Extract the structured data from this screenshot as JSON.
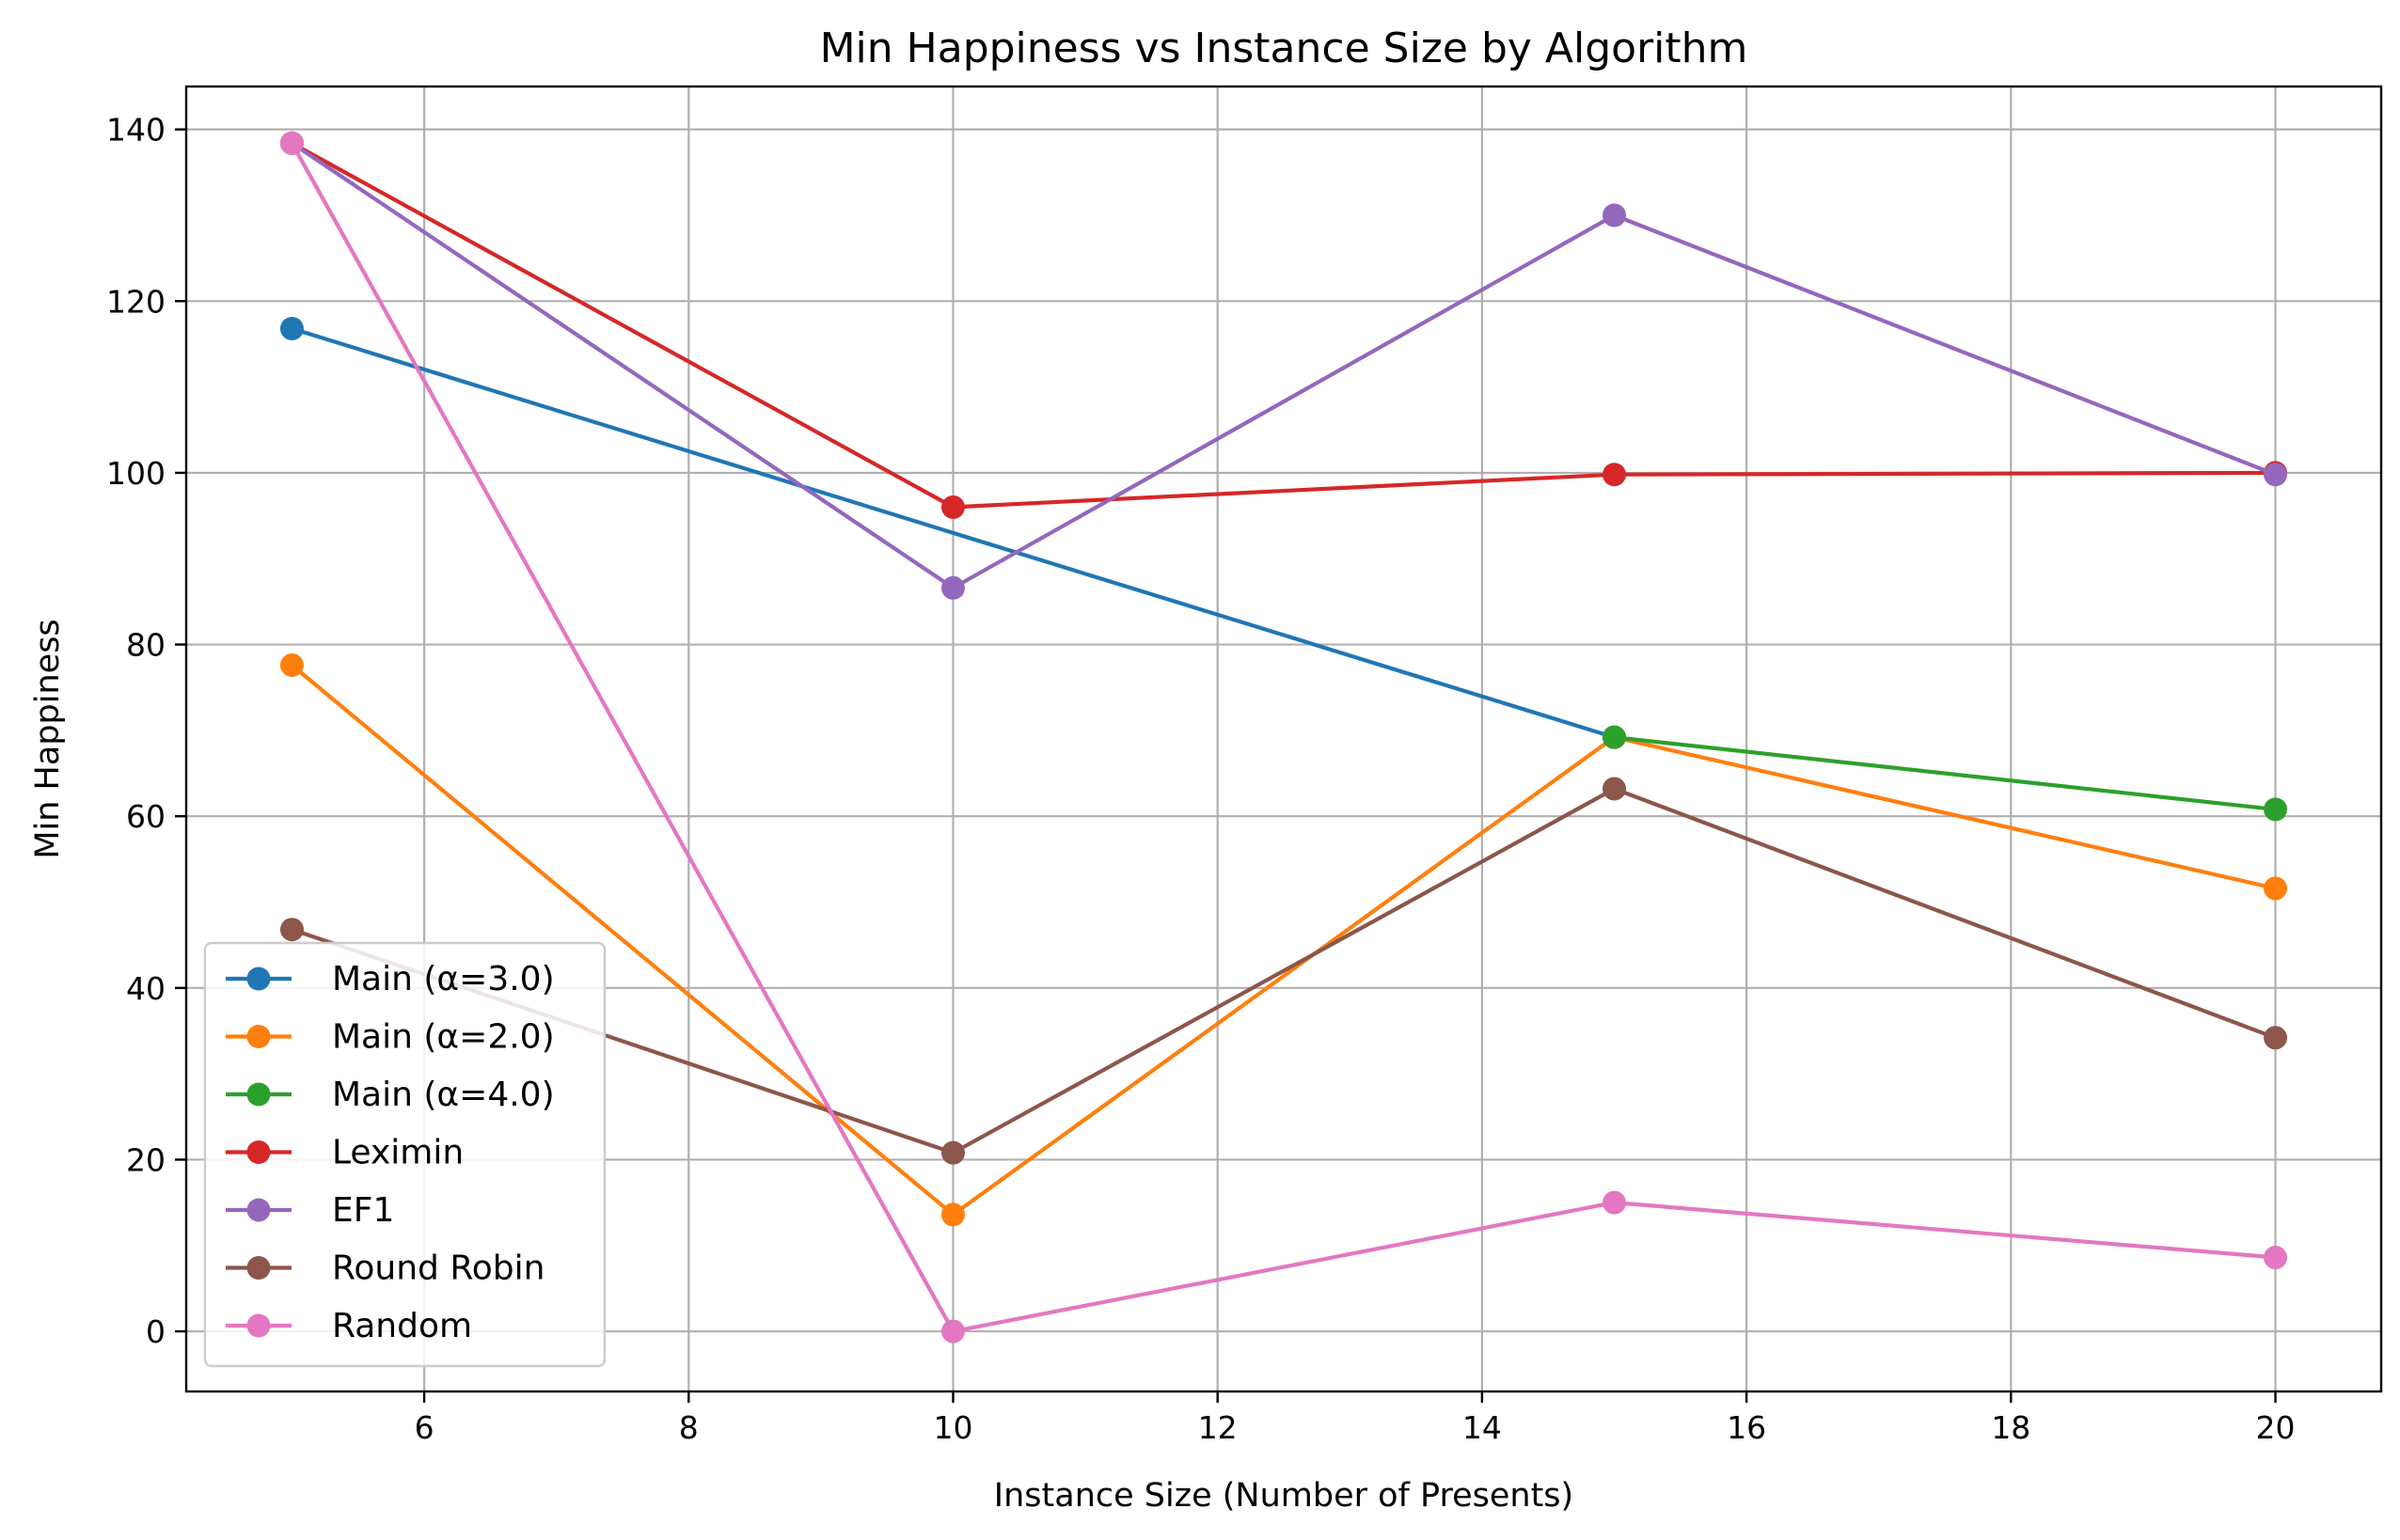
{
  "chart_data": {
    "type": "line",
    "title": "Min Happiness vs Instance Size by Algorithm",
    "xlabel": "Instance Size (Number of Presents)",
    "ylabel": "Min Happiness",
    "xlim": [
      4.2,
      20.8
    ],
    "ylim": [
      -7,
      145
    ],
    "xticks": [
      6,
      8,
      10,
      12,
      14,
      16,
      18,
      20
    ],
    "yticks": [
      0,
      20,
      40,
      60,
      80,
      100,
      120,
      140
    ],
    "grid": true,
    "legend_position": "lower-left",
    "x": [
      5,
      10,
      15,
      20
    ],
    "series": [
      {
        "name": "Main (α=3.0)",
        "color": "#1f77b4",
        "x": [
          5,
          15
        ],
        "values": [
          116.8,
          69.2
        ]
      },
      {
        "name": "Main (α=2.0)",
        "color": "#ff7f0e",
        "x": [
          5,
          10,
          15,
          20
        ],
        "values": [
          77.6,
          13.6,
          69.2,
          51.6
        ]
      },
      {
        "name": "Main (α=4.0)",
        "color": "#2ca02c",
        "x": [
          15,
          20
        ],
        "values": [
          69.2,
          60.8
        ]
      },
      {
        "name": "Leximin",
        "color": "#d62728",
        "x": [
          5,
          10,
          15,
          20
        ],
        "values": [
          138.4,
          96.0,
          99.8,
          100.0
        ]
      },
      {
        "name": "EF1",
        "color": "#9467bd",
        "x": [
          5,
          10,
          15,
          20
        ],
        "values": [
          138.4,
          86.6,
          130.0,
          99.8
        ]
      },
      {
        "name": "Round Robin",
        "color": "#8c564b",
        "x": [
          5,
          10,
          15,
          20
        ],
        "values": [
          46.8,
          20.8,
          63.2,
          34.2
        ]
      },
      {
        "name": "Random",
        "color": "#e377c2",
        "x": [
          5,
          10,
          15,
          20
        ],
        "values": [
          138.4,
          0.0,
          15.0,
          8.6
        ]
      }
    ]
  }
}
